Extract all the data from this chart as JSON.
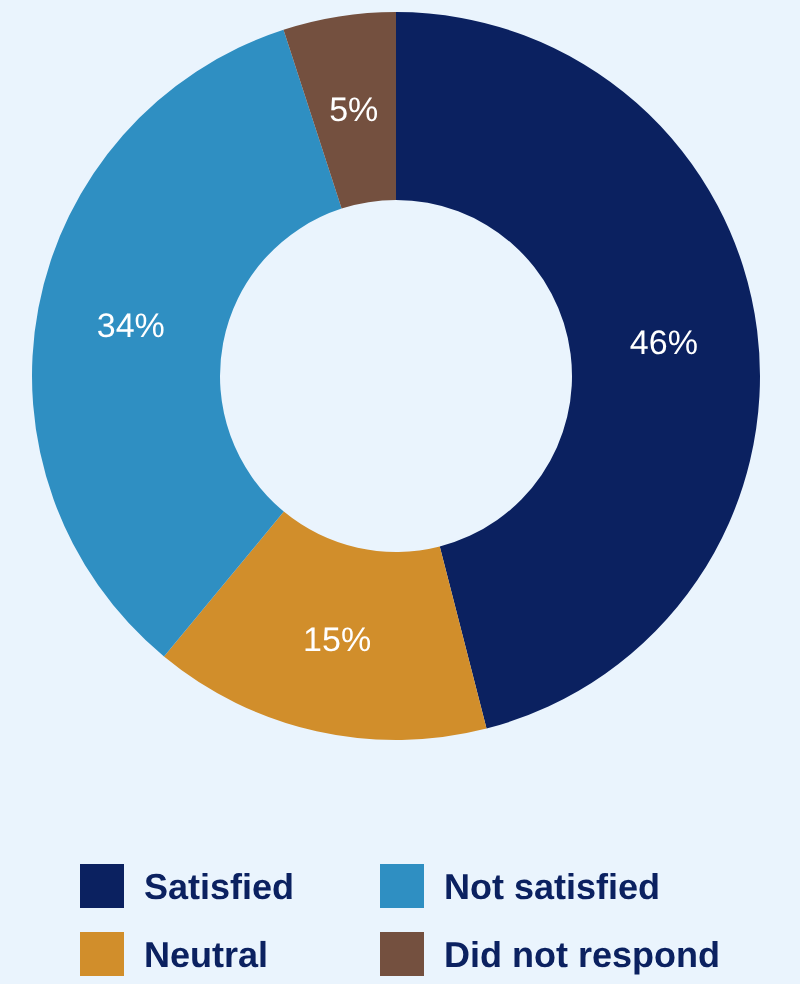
{
  "chart_data": {
    "type": "donut",
    "categories": [
      "Satisfied",
      "Neutral",
      "Not satisfied",
      "Did not respond"
    ],
    "values": [
      46,
      15,
      34,
      5
    ],
    "colors": [
      "#0b2160",
      "#d18e2b",
      "#2f8fc2",
      "#74503f"
    ],
    "value_labels": [
      "46%",
      "15%",
      "34%",
      "5%"
    ],
    "legend": "bottom"
  }
}
